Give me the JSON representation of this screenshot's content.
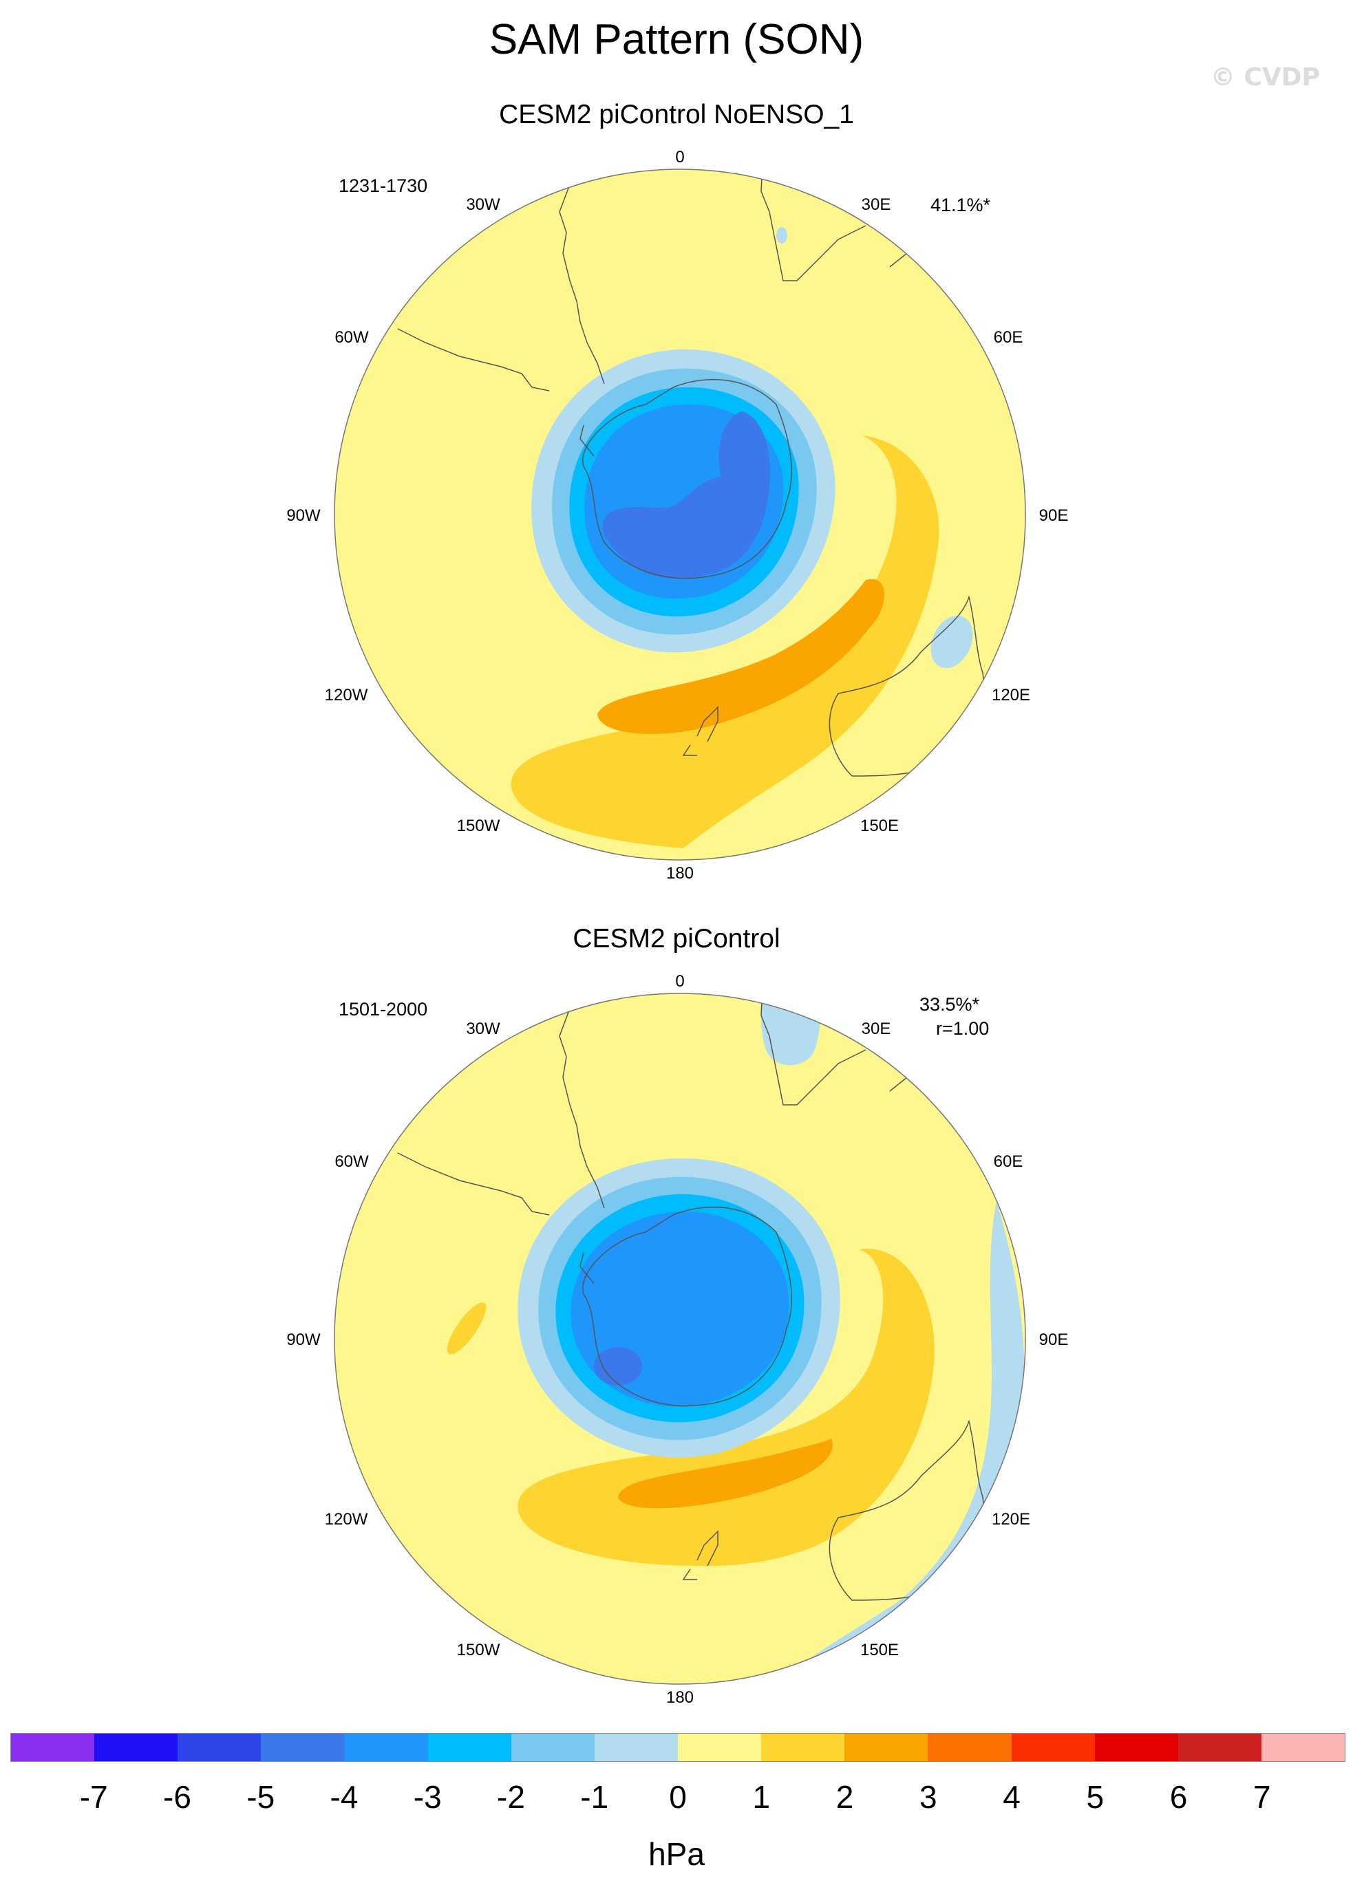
{
  "title": "SAM Pattern (SON)",
  "watermark": "© CVDP",
  "panels": [
    {
      "title": "CESM2 piControl NoENSO_1",
      "years": "1231-1730",
      "variance": "41.1%*",
      "corr": ""
    },
    {
      "title": "CESM2 piControl",
      "years": "1501-2000",
      "variance": "33.5%*",
      "corr": "r=1.00"
    }
  ],
  "lon_labels": {
    "l0": "0",
    "l30e": "30E",
    "l60e": "60E",
    "l90e": "90E",
    "l120e": "120E",
    "l150e": "150E",
    "l180": "180",
    "l150w": "150W",
    "l120w": "120W",
    "l90w": "90W",
    "l60w": "60W",
    "l30w": "30W"
  },
  "colorbar": {
    "colors": [
      "#8b2ff0",
      "#2010f8",
      "#2c45e8",
      "#3b78ec",
      "#1e96fc",
      "#00bcfc",
      "#78c8f0",
      "#b4dcf0",
      "#fef78e",
      "#fed530",
      "#fba600",
      "#fb7200",
      "#fc2e00",
      "#e40000",
      "#cc2222",
      "#fdb4b4"
    ],
    "ticks": [
      "-7",
      "-6",
      "-5",
      "-4",
      "-3",
      "-2",
      "-1",
      "0",
      "1",
      "2",
      "3",
      "4",
      "5",
      "6",
      "7"
    ],
    "unit": "hPa"
  },
  "chart_data": {
    "type": "heatmap",
    "projection": "south-polar-stereographic",
    "field": "SAM regression pattern (SLP)",
    "levels": [
      -7,
      -6,
      -5,
      -4,
      -3,
      -2,
      -1,
      0,
      1,
      2,
      3,
      4,
      5,
      6,
      7
    ],
    "panels": [
      {
        "name": "CESM2 piControl NoENSO_1",
        "period": "1231-1730",
        "variance_pct": 41.1,
        "min_hPa": -5,
        "max_hPa": 3
      },
      {
        "name": "CESM2 piControl",
        "period": "1501-2000",
        "variance_pct": 33.5,
        "pattern_corr": 1.0,
        "min_hPa": -5,
        "max_hPa": 2
      }
    ]
  }
}
